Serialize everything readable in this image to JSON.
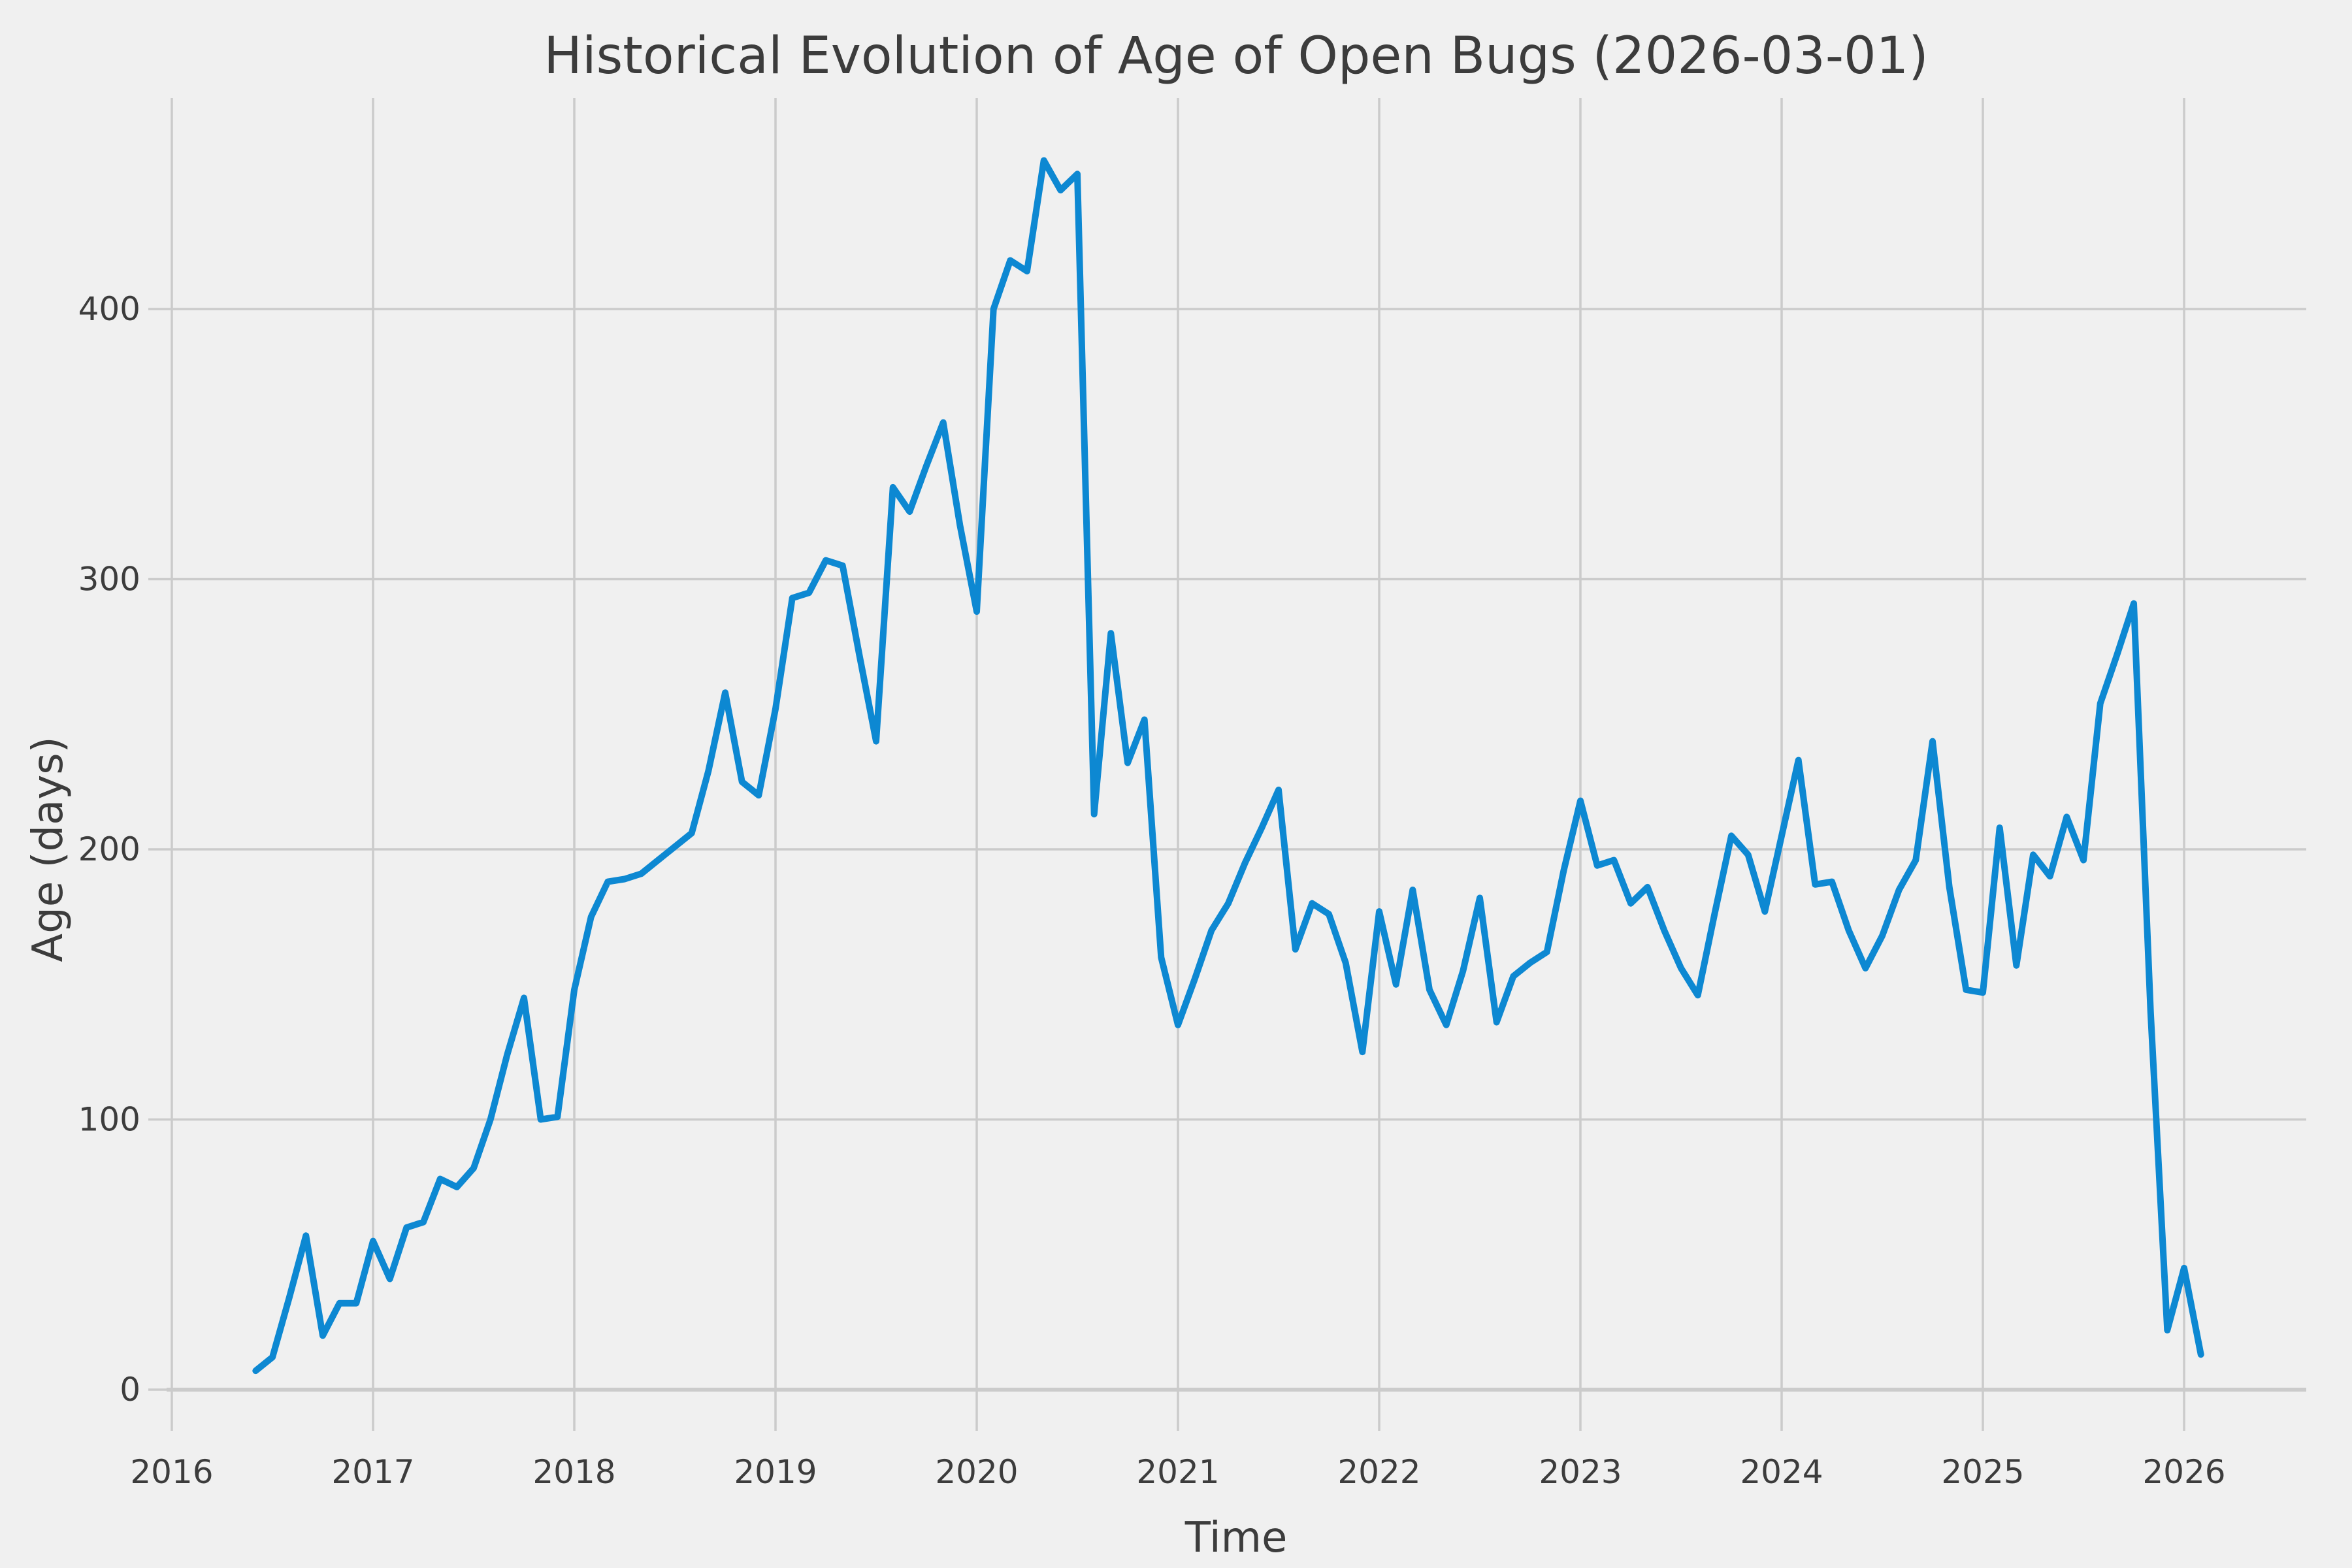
{
  "title": "Historical Evolution of Age of Open Bugs (2026-03-01)",
  "axes": {
    "x_label": "Time",
    "y_label": "Age (days)",
    "x_ticks": [
      2016,
      2017,
      2018,
      2019,
      2020,
      2021,
      2022,
      2023,
      2024,
      2025,
      2026
    ],
    "y_ticks": [
      0,
      100,
      200,
      300,
      400
    ]
  },
  "colors": {
    "background": "#f0f0f0",
    "grid": "#cbcbcb",
    "line": "#0d88d2",
    "text": "#3c3c3c"
  },
  "chart_data": {
    "type": "line",
    "title": "Historical Evolution of Age of Open Bugs (2026-03-01)",
    "xlabel": "Time",
    "ylabel": "Age (days)",
    "xlim": [
      2015.97,
      2026.61
    ],
    "ylim": [
      -15,
      478
    ],
    "grid": true,
    "legend": false,
    "x": [
      "2016-06",
      "2016-07",
      "2016-08",
      "2016-09",
      "2016-10",
      "2016-11",
      "2016-12",
      "2017-01",
      "2017-02",
      "2017-03",
      "2017-04",
      "2017-05",
      "2017-06",
      "2017-07",
      "2017-08",
      "2017-09",
      "2017-10",
      "2017-11",
      "2017-12",
      "2018-01",
      "2018-02",
      "2018-03",
      "2018-04",
      "2018-05",
      "2018-06",
      "2018-07",
      "2018-08",
      "2018-09",
      "2018-10",
      "2018-11",
      "2018-12",
      "2019-01",
      "2019-02",
      "2019-03",
      "2019-04",
      "2019-05",
      "2019-06",
      "2019-07",
      "2019-08",
      "2019-09",
      "2019-10",
      "2019-11",
      "2019-12",
      "2020-01",
      "2020-02",
      "2020-03",
      "2020-04",
      "2020-05",
      "2020-06",
      "2020-07",
      "2020-08",
      "2020-09",
      "2020-10",
      "2020-11",
      "2020-12",
      "2021-01",
      "2021-02",
      "2021-03",
      "2021-04",
      "2021-05",
      "2021-06",
      "2021-07",
      "2021-08",
      "2021-09",
      "2021-10",
      "2021-11",
      "2021-12",
      "2022-01",
      "2022-02",
      "2022-03",
      "2022-04",
      "2022-05",
      "2022-06",
      "2022-07",
      "2022-08",
      "2022-09",
      "2022-10",
      "2022-11",
      "2022-12",
      "2023-01",
      "2023-02",
      "2023-03",
      "2023-04",
      "2023-05",
      "2023-06",
      "2023-07",
      "2023-08",
      "2023-09",
      "2023-10",
      "2023-11",
      "2023-12",
      "2024-01",
      "2024-02",
      "2024-03",
      "2024-04",
      "2024-05",
      "2024-06",
      "2024-07",
      "2024-08",
      "2024-09",
      "2024-10",
      "2024-11",
      "2024-12",
      "2025-01",
      "2025-02",
      "2025-03",
      "2025-04",
      "2025-05",
      "2025-06",
      "2025-07",
      "2025-08",
      "2025-09",
      "2025-10",
      "2025-11",
      "2025-12",
      "2026-01",
      "2026-02"
    ],
    "values": [
      7,
      12,
      34,
      57,
      20,
      32,
      32,
      55,
      41,
      60,
      62,
      78,
      75,
      82,
      100,
      124,
      145,
      100,
      101,
      148,
      175,
      188,
      189,
      191,
      196,
      201,
      206,
      229,
      258,
      225,
      220,
      252,
      293,
      295,
      307,
      305,
      272,
      240,
      334,
      325,
      342,
      358,
      320,
      288,
      400,
      418,
      414,
      455,
      444,
      450,
      213,
      280,
      232,
      248,
      160,
      135,
      152,
      170,
      180,
      195,
      208,
      222,
      163,
      180,
      176,
      158,
      125,
      177,
      150,
      185,
      148,
      135,
      155,
      182,
      136,
      153,
      158,
      162,
      192,
      218,
      194,
      196,
      180,
      186,
      170,
      156,
      146,
      176,
      205,
      198,
      177,
      205,
      233,
      187,
      188,
      170,
      156,
      168,
      185,
      196,
      240,
      186,
      148,
      147,
      208,
      157,
      198,
      190,
      212,
      196,
      254,
      272,
      291,
      140,
      22,
      45,
      13
    ]
  }
}
